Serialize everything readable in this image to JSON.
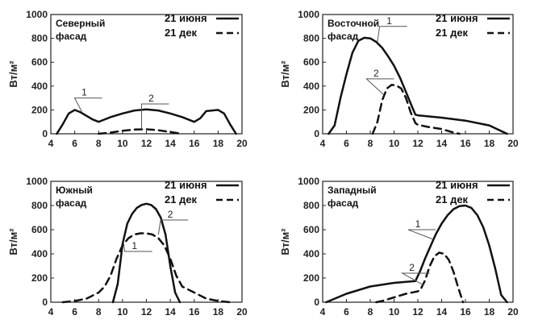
{
  "chart_data": [
    {
      "type": "line",
      "title": "Северный фасад",
      "title_lines": [
        "Северный",
        "фасад"
      ],
      "ylabel": "Вт/м²",
      "xlim": [
        4,
        20
      ],
      "ylim": [
        0,
        1000
      ],
      "xticks": [
        4,
        6,
        8,
        10,
        12,
        14,
        16,
        18,
        20
      ],
      "yticks": [
        0,
        200,
        400,
        600,
        800,
        1000
      ],
      "legend": [
        "21 июня",
        "21 дек"
      ],
      "series": [
        {
          "name": "21 июня",
          "label_number": "1",
          "x": [
            4.5,
            5,
            5.5,
            6,
            6.5,
            7,
            7.5,
            8,
            9,
            10,
            11,
            12,
            13,
            14,
            15,
            16,
            16.5,
            17,
            17.5,
            18,
            18.5,
            19,
            19.5
          ],
          "y": [
            0,
            80,
            170,
            200,
            180,
            150,
            120,
            100,
            140,
            170,
            195,
            205,
            195,
            170,
            140,
            100,
            130,
            190,
            195,
            200,
            170,
            80,
            0
          ]
        },
        {
          "name": "21 дек",
          "label_number": "2",
          "x": [
            8,
            9,
            10,
            11,
            12,
            13,
            14,
            15
          ],
          "y": [
            0,
            10,
            25,
            35,
            38,
            30,
            15,
            0
          ]
        }
      ]
    },
    {
      "type": "line",
      "title": "Восточной фасад",
      "title_lines": [
        "Восточной",
        "фасад"
      ],
      "ylabel": "Вт/м²",
      "xlim": [
        4,
        20
      ],
      "ylim": [
        0,
        1000
      ],
      "xticks": [
        4,
        6,
        8,
        10,
        12,
        14,
        16,
        18,
        20
      ],
      "yticks": [
        0,
        200,
        400,
        600,
        800,
        1000
      ],
      "legend": [
        "21 июня",
        "21 дек"
      ],
      "series": [
        {
          "name": "21 июня",
          "label_number": "1",
          "x": [
            4.5,
            5,
            5.5,
            6,
            6.5,
            7,
            7.5,
            8,
            8.5,
            9,
            9.5,
            10,
            10.5,
            11,
            11.5,
            11.8,
            12,
            14,
            16,
            18,
            19.5
          ],
          "y": [
            0,
            70,
            300,
            500,
            680,
            780,
            805,
            800,
            770,
            720,
            650,
            570,
            470,
            350,
            230,
            160,
            155,
            135,
            110,
            70,
            0
          ]
        },
        {
          "name": "21 дек",
          "label_number": "2",
          "x": [
            8.2,
            8.6,
            9,
            9.4,
            9.8,
            10.2,
            10.6,
            11,
            11.4,
            11.8,
            12,
            13,
            14,
            15,
            15.5
          ],
          "y": [
            0,
            100,
            280,
            380,
            410,
            405,
            380,
            300,
            180,
            90,
            75,
            55,
            40,
            10,
            0
          ]
        }
      ]
    },
    {
      "type": "line",
      "title": "Южный фасад",
      "title_lines": [
        "Южный",
        "фасад"
      ],
      "ylabel": "Вт/м²",
      "xlim": [
        4,
        20
      ],
      "ylim": [
        0,
        1000
      ],
      "xticks": [
        4,
        6,
        8,
        10,
        12,
        14,
        16,
        18,
        20
      ],
      "yticks": [
        0,
        200,
        400,
        600,
        800,
        1000
      ],
      "legend": [
        "21 июня",
        "21 дек"
      ],
      "series": [
        {
          "name": "21 июня",
          "label_number": "1",
          "x": [
            9.2,
            9.6,
            10,
            10.4,
            10.8,
            11.2,
            11.6,
            12,
            12.4,
            12.8,
            13.2,
            13.6,
            14,
            14.4,
            14.8
          ],
          "y": [
            0,
            150,
            480,
            650,
            730,
            780,
            805,
            815,
            805,
            770,
            700,
            560,
            300,
            80,
            0
          ]
        },
        {
          "name": "21 дек",
          "label_number": "2",
          "x": [
            5,
            6,
            7,
            8,
            8.5,
            9,
            9.5,
            10,
            10.5,
            11,
            11.5,
            12,
            12.5,
            13,
            13.5,
            14,
            14.5,
            15,
            16,
            17,
            18,
            19
          ],
          "y": [
            0,
            10,
            30,
            80,
            130,
            220,
            360,
            470,
            530,
            560,
            570,
            570,
            560,
            530,
            470,
            360,
            220,
            130,
            80,
            30,
            10,
            0
          ]
        }
      ]
    },
    {
      "type": "line",
      "title": "Западный фасад",
      "title_lines": [
        "Западный",
        "фасад"
      ],
      "ylabel": "Вт/м²",
      "xlim": [
        4,
        20
      ],
      "ylim": [
        0,
        1000
      ],
      "xticks": [
        4,
        6,
        8,
        10,
        12,
        14,
        16,
        18,
        20
      ],
      "yticks": [
        0,
        200,
        400,
        600,
        800,
        1000
      ],
      "legend": [
        "21 июня",
        "21 дек"
      ],
      "series": [
        {
          "name": "21 июня",
          "label_number": "1",
          "x": [
            4.3,
            6,
            8,
            10,
            11.8,
            12.2,
            12.6,
            13,
            13.5,
            14,
            14.5,
            15,
            15.5,
            16,
            16.5,
            17,
            17.5,
            18,
            18.5,
            19,
            19.5
          ],
          "y": [
            0,
            70,
            130,
            160,
            175,
            260,
            360,
            450,
            560,
            650,
            720,
            770,
            795,
            800,
            780,
            720,
            620,
            470,
            280,
            60,
            0
          ]
        },
        {
          "name": "21 дек",
          "label_number": "2",
          "x": [
            8.5,
            9,
            10,
            11,
            12,
            12.2,
            12.6,
            13,
            13.4,
            13.8,
            14.2,
            14.6,
            15,
            15.4,
            15.8
          ],
          "y": [
            0,
            10,
            40,
            70,
            90,
            100,
            180,
            300,
            380,
            410,
            400,
            350,
            250,
            120,
            0
          ]
        }
      ]
    }
  ]
}
